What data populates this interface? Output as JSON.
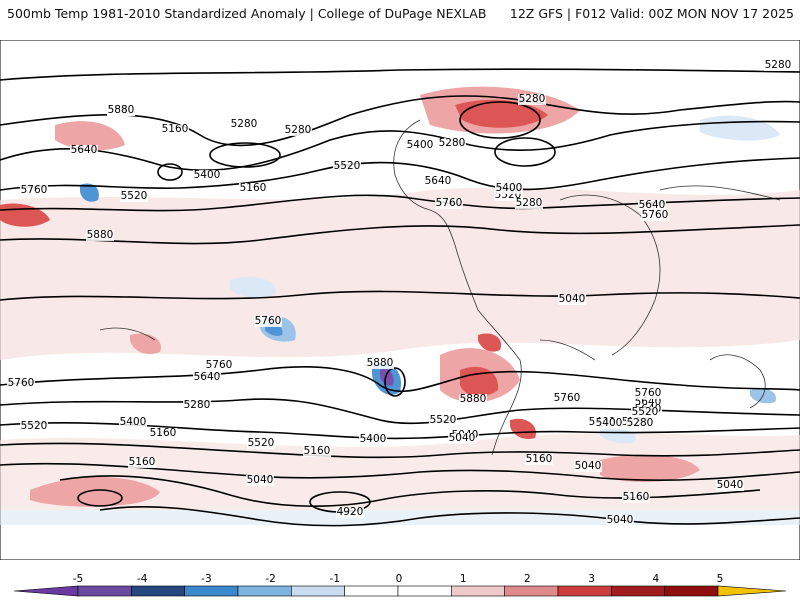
{
  "header": {
    "left_title": "500mb Temp 1981-2010 Standardized Anomaly | College of DuPage NEXLAB",
    "right_title": "12Z GFS | F012 Valid: 00Z MON NOV 17 2025"
  },
  "map": {
    "contour_labels": [
      "5040",
      "5280",
      "5160",
      "5640",
      "5760",
      "5520",
      "5880",
      "5400",
      "5280",
      "5160",
      "5520",
      "5400",
      "5280",
      "5640",
      "5760",
      "5520",
      "5280",
      "5400",
      "5280",
      "5640",
      "5760",
      "5280",
      "5760",
      "5880",
      "5760",
      "5640",
      "5760",
      "5520",
      "5400",
      "5160",
      "5520",
      "5280",
      "5160",
      "5040",
      "5400",
      "5760",
      "5640",
      "5880",
      "5520",
      "5400",
      "5280",
      "5040",
      "5160",
      "5040",
      "5160",
      "5040",
      "4920",
      "5760",
      "5640",
      "5520",
      "5400",
      "5280",
      "5160",
      "5040",
      "5040",
      "5040",
      "5880"
    ],
    "palette": {
      "neg5": "#7a4fb0",
      "neg4": "#1f5fa8",
      "neg3": "#4f95d6",
      "neg2": "#9cc4e8",
      "neg1": "#dbe8f5",
      "pos1": "#f7dede",
      "pos2": "#eea5a5",
      "pos3": "#dd5656",
      "pos4": "#c22a2a",
      "pos5": "#8f0f0f"
    }
  },
  "legend": {
    "ticks": [
      "-5",
      "-4",
      "-3",
      "-2",
      "-1",
      "0",
      "1",
      "2",
      "3",
      "4",
      "5"
    ],
    "colors": [
      "#6b4aa0",
      "#25487f",
      "#3b88cc",
      "#7fb3e0",
      "#c8ddf1",
      "#ffffff",
      "#ffffff",
      "#f0c9c9",
      "#e08b8b",
      "#cc3d3d",
      "#a01d1d",
      "#8f0f0f"
    ],
    "extend_low_color": "#6b3aa0",
    "extend_high_color": "#f2c200"
  }
}
